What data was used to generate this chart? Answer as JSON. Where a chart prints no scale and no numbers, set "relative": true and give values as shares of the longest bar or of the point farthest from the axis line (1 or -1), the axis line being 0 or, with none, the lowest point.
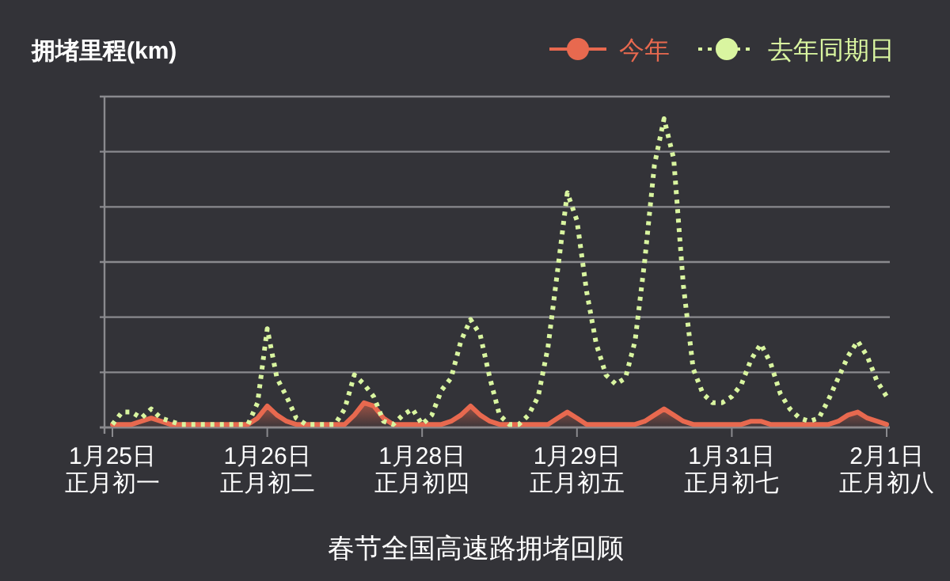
{
  "chart_data": {
    "type": "line",
    "relative": true,
    "ylabel": "拥堵里程(km)",
    "xlabel": "春节全国高速路拥堵回顾",
    "grid": "y",
    "legend": "top right",
    "marker": "none",
    "categories": [
      "1月25日正月初一",
      null,
      null,
      null,
      null,
      null,
      null,
      null,
      null,
      null,
      null,
      null,
      null,
      null,
      null,
      null,
      "1月26日正月初二",
      null,
      null,
      null,
      null,
      null,
      null,
      null,
      null,
      null,
      null,
      null,
      null,
      null,
      null,
      null,
      "1月28日正月初四",
      null,
      null,
      null,
      null,
      null,
      null,
      null,
      null,
      null,
      null,
      null,
      null,
      null,
      null,
      null,
      "1月29日正月初五",
      null,
      null,
      null,
      null,
      null,
      null,
      null,
      null,
      null,
      null,
      null,
      null,
      null,
      null,
      null,
      "1月31日正月初七",
      null,
      null,
      null,
      null,
      null,
      null,
      null,
      null,
      null,
      null,
      null,
      null,
      null,
      null,
      null,
      "2月1日正月初八"
    ],
    "series": [
      {
        "name": "今年",
        "type": "area",
        "color": "#e8694f",
        "line_style": "solid",
        "values": [
          0.01,
          0.01,
          0.01,
          0.02,
          0.03,
          0.02,
          0.01,
          0.01,
          0.01,
          0.01,
          0.01,
          0.01,
          0.01,
          0.01,
          0.01,
          0.03,
          0.07,
          0.04,
          0.02,
          0.01,
          0.01,
          0.01,
          0.01,
          0.01,
          0.01,
          0.04,
          0.08,
          0.07,
          0.03,
          0.01,
          0.01,
          0.01,
          0.01,
          0.01,
          0.01,
          0.02,
          0.04,
          0.07,
          0.04,
          0.02,
          0.01,
          0.01,
          0.01,
          0.01,
          0.01,
          0.01,
          0.03,
          0.05,
          0.03,
          0.01,
          0.01,
          0.01,
          0.01,
          0.01,
          0.01,
          0.02,
          0.04,
          0.06,
          0.04,
          0.02,
          0.01,
          0.01,
          0.01,
          0.01,
          0.01,
          0.01,
          0.02,
          0.02,
          0.01,
          0.01,
          0.01,
          0.01,
          0.01,
          0.01,
          0.01,
          0.02,
          0.04,
          0.05,
          0.03,
          0.02,
          0.01
        ]
      },
      {
        "name": "去年同期日",
        "color": "#d9f5a0",
        "line_style": "dotted",
        "values": [
          0.01,
          0.05,
          0.05,
          0.03,
          0.06,
          0.03,
          0.02,
          0.01,
          0.01,
          0.01,
          0.01,
          0.01,
          0.01,
          0.01,
          0.01,
          0.08,
          0.32,
          0.16,
          0.1,
          0.03,
          0.01,
          0.01,
          0.01,
          0.01,
          0.06,
          0.17,
          0.14,
          0.1,
          0.02,
          0.01,
          0.04,
          0.06,
          0.01,
          0.04,
          0.12,
          0.16,
          0.28,
          0.35,
          0.3,
          0.16,
          0.04,
          0.01,
          0.01,
          0.04,
          0.1,
          0.26,
          0.51,
          0.76,
          0.67,
          0.44,
          0.27,
          0.17,
          0.14,
          0.16,
          0.28,
          0.54,
          0.85,
          1.0,
          0.87,
          0.46,
          0.19,
          0.11,
          0.08,
          0.08,
          0.1,
          0.14,
          0.22,
          0.27,
          0.21,
          0.11,
          0.06,
          0.03,
          0.02,
          0.03,
          0.09,
          0.16,
          0.23,
          0.28,
          0.23,
          0.15,
          0.1
        ]
      }
    ]
  }
}
